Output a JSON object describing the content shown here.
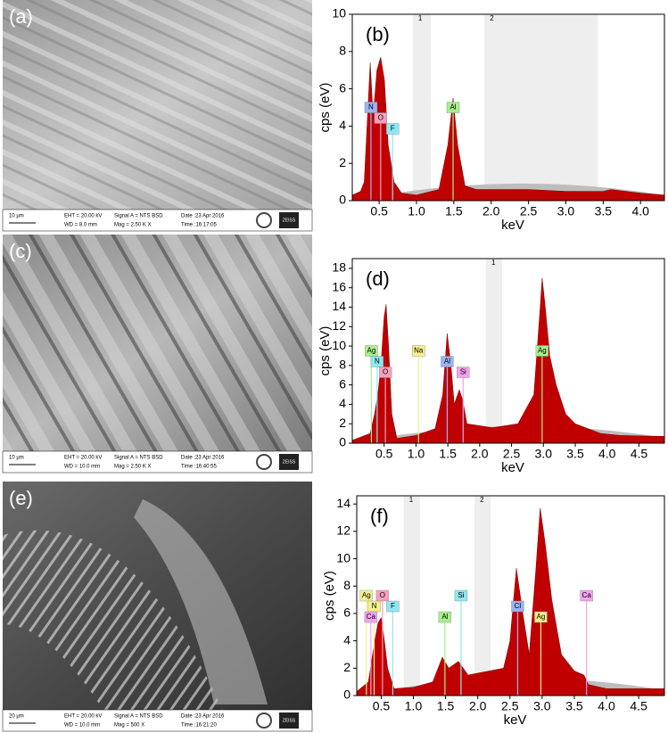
{
  "panels": [
    {
      "label": "(a)",
      "info": {
        "scale": "10 µm",
        "eht": "EHT = 20.00 kV",
        "wd": "WD = 8.0 mm",
        "signal": "Signal A = NTS BSD",
        "mag": "Mag =  2.50 K X",
        "date": "Date :23 Apr 2016",
        "time": "Time :16:17:05",
        "brand": "ZEISS"
      }
    },
    {
      "label": "(c)",
      "info": {
        "scale": "10 µm",
        "eht": "EHT = 20.00 kV",
        "wd": "WD = 10.0 mm",
        "signal": "Signal A = NTS BSD",
        "mag": "Mag =  2.50 K X",
        "date": "Date :23 Apr 2016",
        "time": "Time :16:40:55",
        "brand": "ZEISS"
      }
    },
    {
      "label": "(e)",
      "info": {
        "scale": "20 µm",
        "eht": "EHT = 20.00 kV",
        "wd": "WD = 10.0 mm",
        "signal": "Signal A = NTS BSD",
        "mag": "Mag =  500 X",
        "date": "Date :23 Apr 2016",
        "time": "Time :16:21:20",
        "brand": "ZEISS"
      }
    }
  ],
  "chart_data": [
    {
      "type": "area",
      "title": "(b)",
      "xlabel": "keV",
      "ylabel": "cps (eV)",
      "color": "#c00000",
      "x": [
        0.14,
        0.25,
        0.3,
        0.35,
        0.38,
        0.42,
        0.47,
        0.52,
        0.57,
        0.62,
        0.7,
        0.8,
        1.0,
        1.3,
        1.42,
        1.49,
        1.55,
        1.65,
        1.8,
        2.5,
        3.0,
        3.5,
        3.6,
        4.0,
        4.32
      ],
      "values": [
        0.3,
        0.5,
        1,
        5,
        7.4,
        4.5,
        7,
        7.7,
        6.5,
        3,
        1,
        0.4,
        0.3,
        0.6,
        3,
        5.5,
        3,
        0.8,
        0.6,
        0.6,
        0.5,
        0.5,
        0.6,
        0.4,
        0.3
      ],
      "xlim": [
        0.14,
        4.32
      ],
      "ylim": [
        0,
        10
      ],
      "xticks": [
        0.5,
        {
          "value": 1,
          "label": "1.0"
        },
        1.5,
        {
          "value": 2,
          "label": "2.0"
        },
        2.5,
        {
          "value": 3,
          "label": "3.0"
        },
        3.5,
        {
          "value": 4,
          "label": "4.0"
        }
      ],
      "yticks": [
        0,
        2,
        4,
        6,
        8,
        10
      ],
      "regions": [
        {
          "label": "1",
          "from": 0.95,
          "to": 1.19
        },
        {
          "label": "2",
          "from": 1.91,
          "to": 3.43
        }
      ],
      "peaks": [
        {
          "label": "N",
          "x": 0.39,
          "color": "#9ab3f5"
        },
        {
          "label": "O",
          "x": 0.52,
          "color": "#f4a0c0"
        },
        {
          "label": "F",
          "x": 0.68,
          "color": "#8ee8f0"
        },
        {
          "label": "Al",
          "x": 1.49,
          "color": "#a6f08a"
        }
      ]
    },
    {
      "type": "area",
      "title": "(d)",
      "xlabel": "keV",
      "ylabel": "cps (eV)",
      "color": "#c00000",
      "x": [
        0.0,
        0.28,
        0.35,
        0.4,
        0.45,
        0.5,
        0.53,
        0.57,
        0.62,
        0.7,
        1.0,
        1.3,
        1.42,
        1.49,
        1.55,
        1.6,
        1.68,
        1.73,
        1.8,
        2.2,
        2.6,
        2.85,
        2.95,
        2.98,
        3.03,
        3.1,
        3.2,
        3.35,
        3.5,
        3.7,
        3.9,
        4.2,
        4.9
      ],
      "values": [
        0.3,
        1,
        3,
        5,
        8,
        13,
        14.3,
        10,
        3,
        0.5,
        0.8,
        1.5,
        5,
        11.3,
        8,
        4,
        5.5,
        4.5,
        2,
        1.6,
        2,
        5,
        14,
        17,
        14,
        9,
        6,
        3,
        2,
        1.5,
        1,
        0.8,
        0.7
      ],
      "xlim": [
        0,
        4.9
      ],
      "ylim": [
        0,
        19
      ],
      "xticks": [
        0.5,
        {
          "value": 1,
          "label": "1.0"
        },
        1.5,
        {
          "value": 2,
          "label": "2.0"
        },
        2.5,
        {
          "value": 3,
          "label": "3.0"
        },
        3.5,
        {
          "value": 4,
          "label": "4.0"
        },
        4.5
      ],
      "yticks": [
        0,
        2,
        4,
        6,
        8,
        10,
        12,
        14,
        16,
        18
      ],
      "regions": [
        {
          "label": "1",
          "from": 2.1,
          "to": 2.35
        }
      ],
      "peaks": [
        {
          "label": "Ag",
          "x": 0.3,
          "color": "#a6f08a"
        },
        {
          "label": "N",
          "x": 0.39,
          "color": "#8ee8f0"
        },
        {
          "label": "O",
          "x": 0.52,
          "color": "#f4a0c0"
        },
        {
          "label": "Na",
          "x": 1.04,
          "color": "#f5f08a"
        },
        {
          "label": "Al",
          "x": 1.49,
          "color": "#9ab3f5"
        },
        {
          "label": "Si",
          "x": 1.74,
          "color": "#f4a0f0"
        },
        {
          "label": "Ag",
          "x": 2.98,
          "color": "#a6f08a"
        }
      ]
    },
    {
      "type": "area",
      "title": "(f)",
      "xlabel": "keV",
      "ylabel": "cps (eV)",
      "color": "#c00000",
      "x": [
        0.12,
        0.3,
        0.4,
        0.45,
        0.5,
        0.55,
        0.6,
        0.7,
        1.0,
        1.3,
        1.45,
        1.55,
        1.7,
        1.85,
        2.4,
        2.5,
        2.6,
        2.7,
        2.8,
        2.9,
        2.97,
        3.05,
        3.15,
        3.3,
        3.5,
        3.65,
        3.72,
        4.0,
        4.9
      ],
      "values": [
        0.3,
        1,
        4,
        5.3,
        5.7,
        4,
        2,
        0.5,
        0.6,
        1,
        2.8,
        2,
        2.5,
        1.5,
        2,
        4,
        9.3,
        6,
        3,
        9,
        13.7,
        11,
        7,
        3,
        1.8,
        1.5,
        0.8,
        0.5,
        0.5
      ],
      "xlim": [
        0.12,
        4.9
      ],
      "ylim": [
        0,
        14.6
      ],
      "xticks": [
        0.5,
        {
          "value": 1,
          "label": "1.0"
        },
        1.5,
        {
          "value": 2,
          "label": "2.0"
        },
        2.5,
        {
          "value": 3,
          "label": "3.0"
        },
        3.5,
        {
          "value": 4,
          "label": "4.0"
        },
        4.5
      ],
      "yticks": [
        0,
        2,
        4,
        6,
        8,
        10,
        12,
        14
      ],
      "regions": [
        {
          "label": "1",
          "from": 0.85,
          "to": 1.1
        },
        {
          "label": "2",
          "from": 1.95,
          "to": 2.2
        }
      ],
      "peaks": [
        {
          "label": "Ag",
          "x": 0.27,
          "color": "#f5f08a"
        },
        {
          "label": "N",
          "x": 0.39,
          "color": "#f5f08a"
        },
        {
          "label": "Ca",
          "x": 0.34,
          "color": "#f4a0f0"
        },
        {
          "label": "O",
          "x": 0.52,
          "color": "#f4a0c0"
        },
        {
          "label": "F",
          "x": 0.68,
          "color": "#8ee8f0"
        },
        {
          "label": "Al",
          "x": 1.49,
          "color": "#a6f08a"
        },
        {
          "label": "Si",
          "x": 1.74,
          "color": "#8ee8f0"
        },
        {
          "label": "Cl",
          "x": 2.62,
          "color": "#9ab3f5"
        },
        {
          "label": "Ag",
          "x": 2.98,
          "color": "#f5f08a"
        },
        {
          "label": "Ca",
          "x": 3.69,
          "color": "#f4a0f0"
        }
      ]
    }
  ]
}
